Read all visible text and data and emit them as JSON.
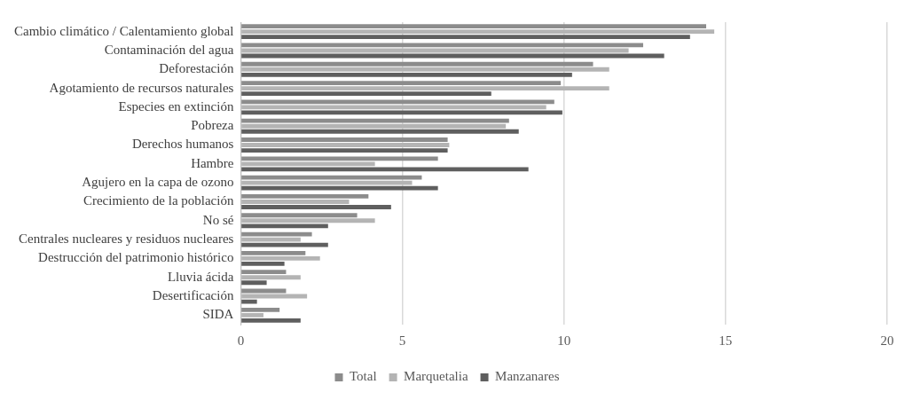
{
  "chart_data": {
    "type": "bar",
    "orientation": "horizontal",
    "categories": [
      "Cambio climático / Calentamiento global",
      "Contaminación del agua",
      "Deforestación",
      "Agotamiento de recursos naturales",
      "Especies en extinción",
      "Pobreza",
      "Derechos humanos",
      "Hambre",
      "Agujero en la capa de ozono",
      "Crecimiento de la población",
      "No sé",
      "Centrales nucleares y residuos nucleares",
      "Destrucción del patrimonio histórico",
      "Lluvia ácida",
      "Desertificación",
      "SIDA"
    ],
    "series": [
      {
        "name": "Total",
        "color": "#8c8c8c",
        "values": [
          14.4,
          12.45,
          10.9,
          9.9,
          9.7,
          8.3,
          6.4,
          6.1,
          5.6,
          3.95,
          3.6,
          2.2,
          2.0,
          1.4,
          1.4,
          1.2
        ]
      },
      {
        "name": "Marquetalia",
        "color": "#b4b4b4",
        "values": [
          14.65,
          12.0,
          11.4,
          11.4,
          9.45,
          8.2,
          6.45,
          4.15,
          5.3,
          3.35,
          4.15,
          1.85,
          2.45,
          1.85,
          2.05,
          0.7
        ]
      },
      {
        "name": "Manzanares",
        "color": "#5f5f5f",
        "values": [
          13.9,
          13.1,
          10.25,
          7.75,
          9.95,
          8.6,
          6.4,
          8.9,
          6.1,
          4.65,
          2.7,
          2.7,
          1.35,
          0.8,
          0.5,
          1.85
        ]
      }
    ],
    "xlim": [
      0,
      20
    ],
    "xticks": [
      0,
      5,
      10,
      15,
      20
    ],
    "grid": "x",
    "legend": "bottom"
  }
}
